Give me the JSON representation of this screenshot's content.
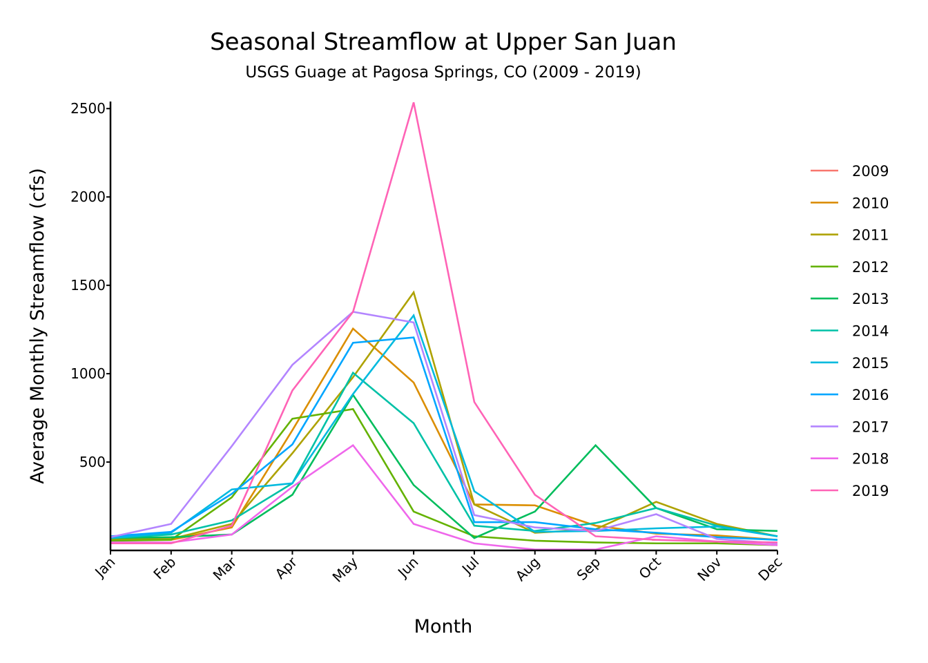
{
  "chart_data": {
    "type": "line",
    "title": "Seasonal Streamflow at Upper San Juan",
    "subtitle": "USGS Guage at Pagosa Springs, CO (2009 - 2019)",
    "xlabel": "Month",
    "ylabel": "Average Monthly Streamflow (cfs)",
    "categories": [
      "Jan",
      "Feb",
      "Mar",
      "Apr",
      "May",
      "Jun",
      "Jul",
      "Aug",
      "Sep",
      "Oct",
      "Nov",
      "Dec"
    ],
    "yticks": [
      500,
      1000,
      1500,
      2000,
      2500
    ],
    "ylim": [
      0,
      2540
    ],
    "grid": false,
    "legend_position": "right",
    "series": [
      {
        "name": "2009",
        "color": "#F8766D",
        "values": [
          null,
          null,
          null,
          null,
          null,
          null,
          null,
          null,
          null,
          60,
          null,
          null
        ]
      },
      {
        "name": "2010",
        "color": "#DB8E00",
        "values": [
          60,
          60,
          130,
          680,
          1255,
          950,
          260,
          255,
          140,
          95,
          85,
          60
        ]
      },
      {
        "name": "2011",
        "color": "#AEA200",
        "values": [
          65,
          65,
          150,
          550,
          980,
          1460,
          260,
          100,
          120,
          275,
          150,
          80
        ]
      },
      {
        "name": "2012",
        "color": "#64B200",
        "values": [
          55,
          60,
          300,
          745,
          800,
          220,
          80,
          55,
          45,
          40,
          40,
          30
        ]
      },
      {
        "name": "2013",
        "color": "#00BD5C",
        "values": [
          70,
          75,
          90,
          315,
          880,
          370,
          70,
          220,
          595,
          240,
          120,
          110
        ]
      },
      {
        "name": "2014",
        "color": "#00C1A7",
        "values": [
          70,
          90,
          170,
          380,
          1005,
          720,
          140,
          110,
          155,
          240,
          140,
          80
        ]
      },
      {
        "name": "2015",
        "color": "#00BADE",
        "values": [
          70,
          100,
          345,
          380,
          885,
          1330,
          335,
          105,
          110,
          125,
          135,
          80
        ]
      },
      {
        "name": "2016",
        "color": "#00A6FF",
        "values": [
          80,
          105,
          320,
          600,
          1175,
          1205,
          160,
          160,
          120,
          100,
          75,
          60
        ]
      },
      {
        "name": "2017",
        "color": "#B385FF",
        "values": [
          75,
          150,
          590,
          1050,
          1350,
          1290,
          200,
          130,
          110,
          205,
          65,
          40
        ]
      },
      {
        "name": "2018",
        "color": "#EF67EB",
        "values": [
          45,
          45,
          90,
          360,
          595,
          150,
          40,
          5,
          5,
          80,
          50,
          30
        ]
      },
      {
        "name": "2019",
        "color": "#FF63B6",
        "values": [
          40,
          40,
          140,
          905,
          1350,
          2535,
          840,
          315,
          80,
          60,
          50,
          45
        ]
      }
    ]
  }
}
